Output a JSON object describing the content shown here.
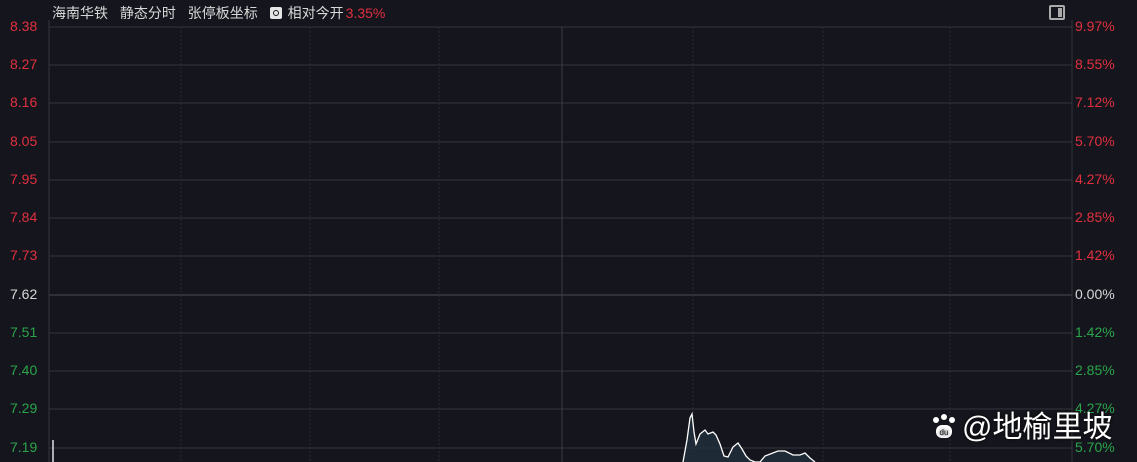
{
  "header": {
    "stock_name": "海南华铁",
    "mode": "静态分时",
    "axis_mode": "张停板坐标",
    "relative_label": "相对今开",
    "relative_value": "3.35%"
  },
  "left_axis": [
    "8.38",
    "8.27",
    "8.16",
    "8.05",
    "7.95",
    "7.84",
    "7.73",
    "7.62",
    "7.51",
    "7.40",
    "7.29",
    "7.19"
  ],
  "right_axis": [
    "9.97%",
    "8.55%",
    "7.12%",
    "5.70%",
    "4.27%",
    "2.85%",
    "1.42%",
    "0.00%",
    "1.42%",
    "2.85%",
    "4.27%",
    "5.70%"
  ],
  "colors": {
    "up": "#e0303f",
    "down": "#2aa44a",
    "background": "#15161d",
    "line": "#ffffff"
  },
  "watermark": "@地榆里坡"
}
